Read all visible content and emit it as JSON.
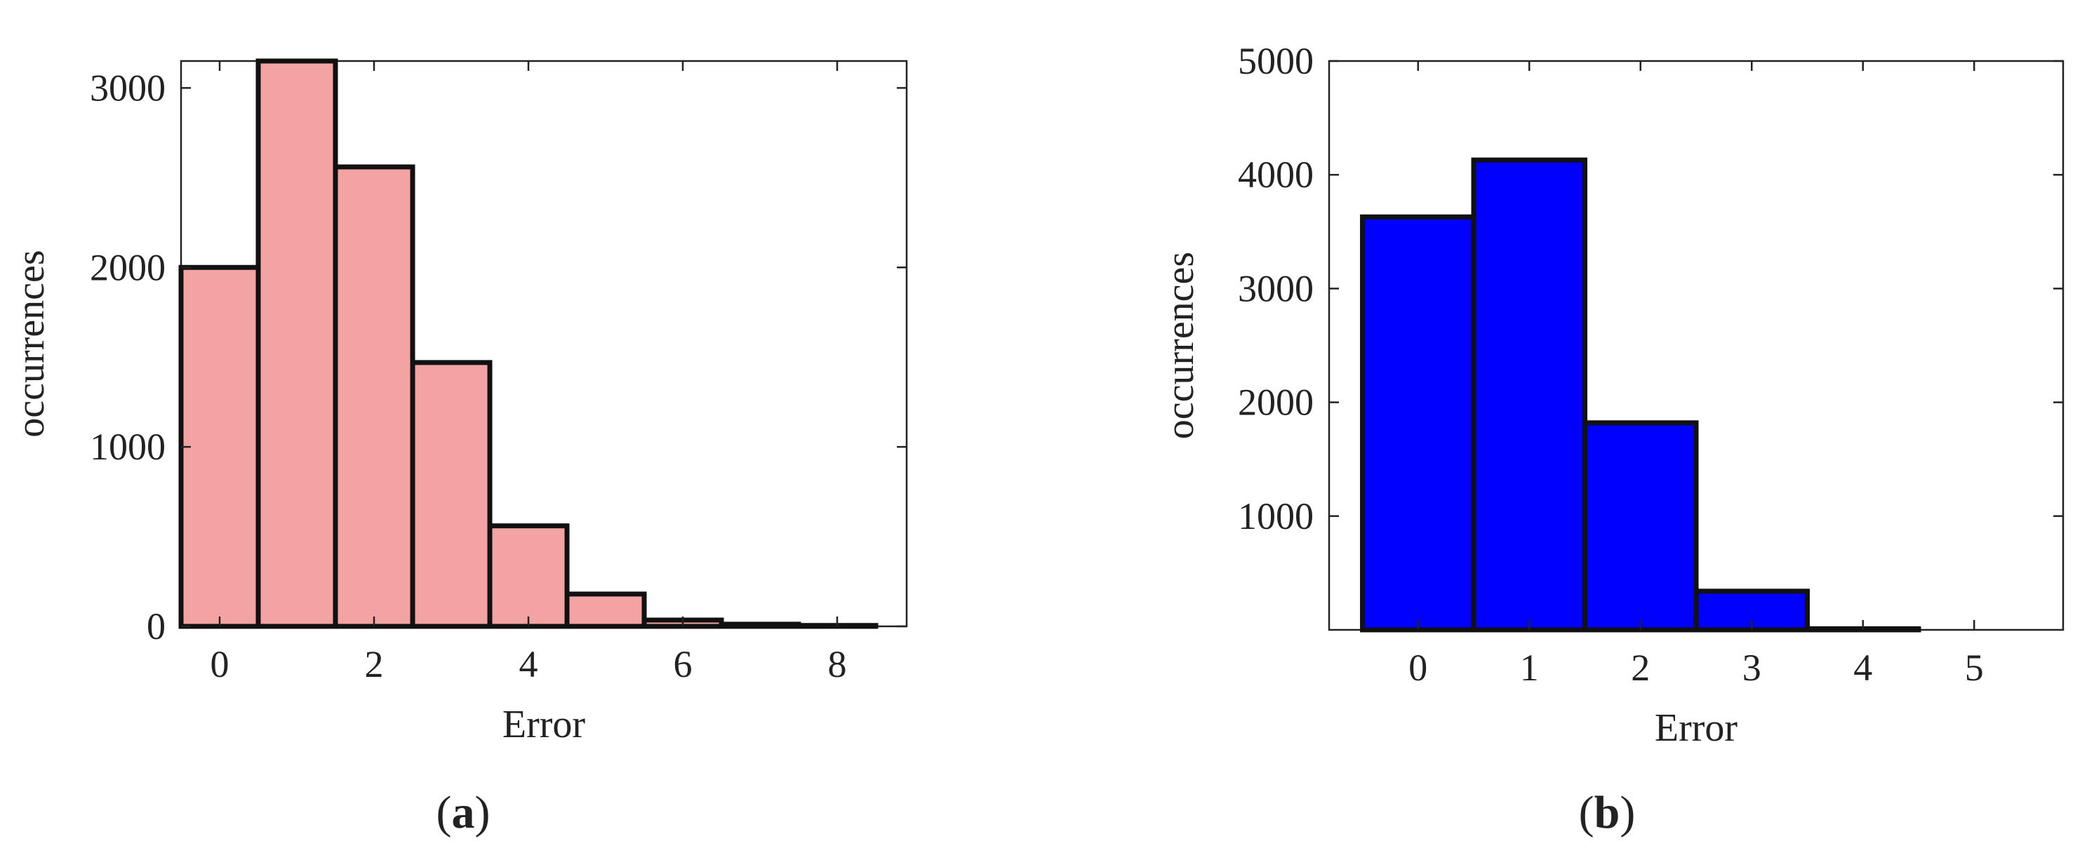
{
  "figure": {
    "panel_labels": [
      "a",
      "b"
    ]
  },
  "chart_data": [
    {
      "type": "bar",
      "panel": "a",
      "xlabel": "Error",
      "ylabel": "occurrences",
      "xlim": [
        -0.5,
        8.9
      ],
      "ylim": [
        0,
        3150
      ],
      "xticks": [
        0,
        2,
        4,
        6,
        8
      ],
      "yticks": [
        0,
        1000,
        2000,
        3000
      ],
      "grid": false,
      "bar_color": "#f4a3a3",
      "edge_color": "#111111",
      "bins": [
        0,
        1,
        2,
        3,
        4,
        5,
        6,
        7,
        8
      ],
      "values": [
        2000,
        3150,
        2560,
        1470,
        560,
        180,
        35,
        12,
        5
      ]
    },
    {
      "type": "bar",
      "panel": "b",
      "xlabel": "Error",
      "ylabel": "occurrences",
      "xlim": [
        -0.8,
        5.8
      ],
      "ylim": [
        0,
        5000
      ],
      "xticks": [
        0,
        1,
        2,
        3,
        4,
        5
      ],
      "yticks": [
        1000,
        2000,
        3000,
        4000,
        5000
      ],
      "grid": false,
      "bar_color": "#0000ff",
      "edge_color": "#111111",
      "bins": [
        0,
        1,
        2,
        3,
        4
      ],
      "values": [
        3630,
        4130,
        1820,
        340,
        10
      ]
    }
  ]
}
